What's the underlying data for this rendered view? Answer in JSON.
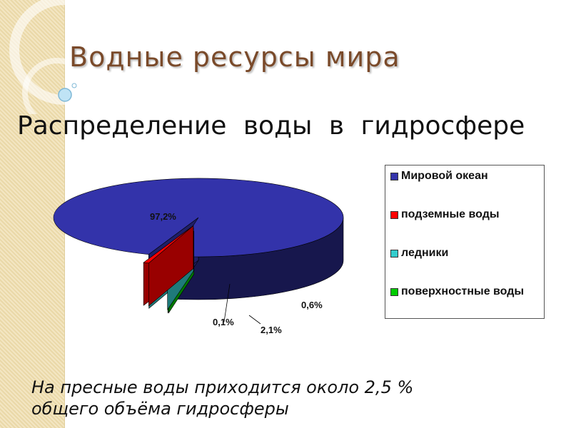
{
  "slide": {
    "title": "Водные ресурсы мира",
    "subtitle": "Распределение воды в гидросфере",
    "note_line1": "На пресные воды приходится около 2,5 %",
    "note_line2": "общего объёма гидросферы"
  },
  "chart_data": {
    "type": "pie",
    "style": "3d-exploded",
    "legend_position": "right",
    "categories": [
      "Мировой океан",
      "подземные воды",
      "ледники",
      "поверхностные воды"
    ],
    "values": [
      97.2,
      0.6,
      2.1,
      0.1
    ],
    "data_labels": [
      "97,2%",
      "0,6%",
      "2,1%",
      "0,1%"
    ],
    "colors": [
      "#3333aa",
      "#ff0000",
      "#33cccc",
      "#00cc00"
    ]
  }
}
